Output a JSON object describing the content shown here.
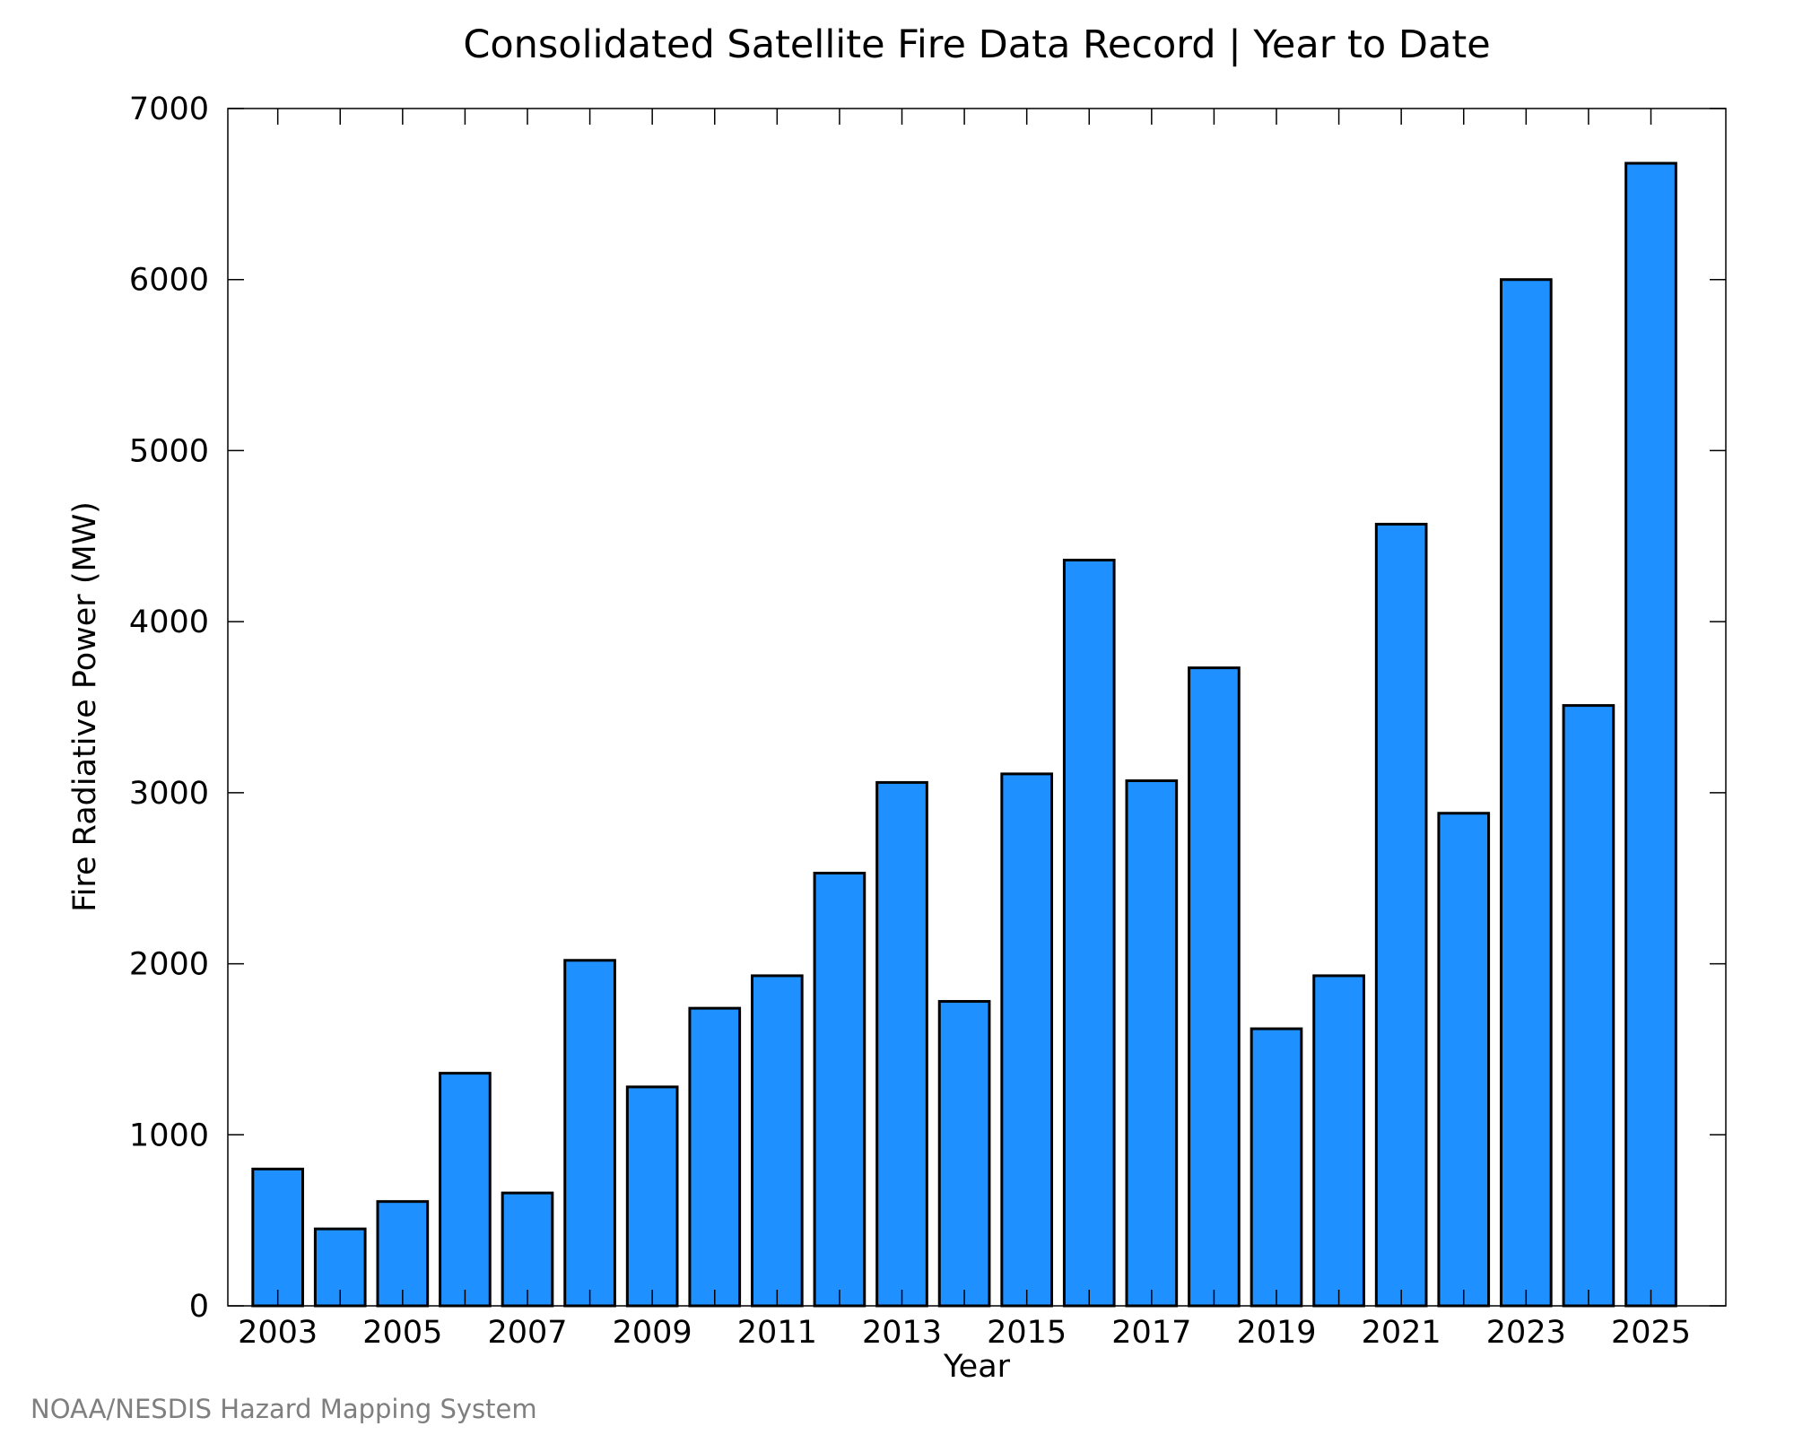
{
  "chart_data": {
    "type": "bar",
    "title": "Consolidated Satellite Fire Data Record | Year to Date",
    "xlabel": "Year",
    "ylabel": "Fire Radiative Power (MW)",
    "categories": [
      2003,
      2004,
      2005,
      2006,
      2007,
      2008,
      2009,
      2010,
      2011,
      2012,
      2013,
      2014,
      2015,
      2016,
      2017,
      2018,
      2019,
      2020,
      2021,
      2022,
      2023,
      2024,
      2025
    ],
    "values": [
      800,
      450,
      610,
      1360,
      660,
      2020,
      1280,
      1740,
      1930,
      2530,
      3060,
      1780,
      3110,
      4360,
      3070,
      3730,
      1620,
      1930,
      4570,
      2880,
      6000,
      3510,
      6680
    ],
    "x_tick_labels": [
      "2003",
      "2005",
      "2007",
      "2009",
      "2011",
      "2013",
      "2015",
      "2017",
      "2019",
      "2021",
      "2023",
      "2025"
    ],
    "y_tick_labels": [
      "0",
      "1000",
      "2000",
      "3000",
      "4000",
      "5000",
      "6000",
      "7000"
    ],
    "y_ticks": [
      0,
      1000,
      2000,
      3000,
      4000,
      5000,
      6000,
      7000
    ],
    "ylim": [
      0,
      7000
    ],
    "xlim": [
      2002.2,
      2026.2
    ],
    "grid": false,
    "legend": false,
    "bar_color": "#1e90ff",
    "edge_color": "#000000"
  },
  "footer": "NOAA/NESDIS Hazard Mapping System"
}
